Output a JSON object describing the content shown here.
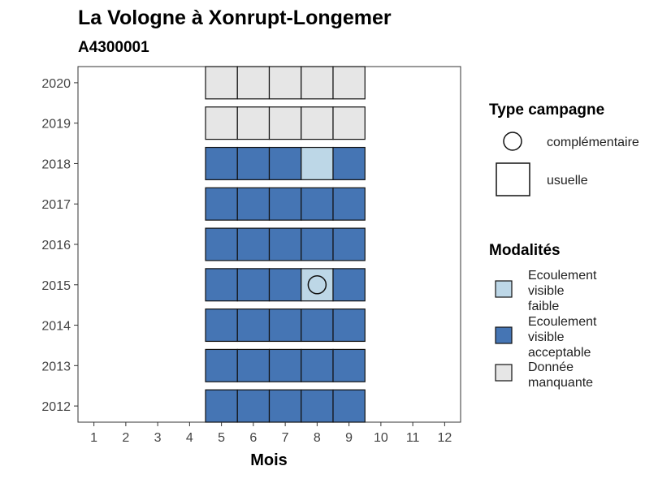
{
  "chart_data": {
    "type": "heatmap",
    "title": "La Vologne à Xonrupt-Longemer",
    "subtitle": "A4300001",
    "xlabel": "Mois",
    "ylabel": "",
    "x_ticks": [
      "1",
      "2",
      "3",
      "4",
      "5",
      "6",
      "7",
      "8",
      "9",
      "10",
      "11",
      "12"
    ],
    "y_ticks": [
      "2012",
      "2013",
      "2014",
      "2015",
      "2016",
      "2017",
      "2018",
      "2019",
      "2020"
    ],
    "xlim": [
      0.5,
      12.5
    ],
    "ylim": [
      2011.6,
      2020.4
    ],
    "colors": {
      "Ecoulement visible faible": "#bdd7e7",
      "Ecoulement visible acceptable": "#4575b4",
      "Donnée manquante": "#e6e6e6"
    },
    "cells": [
      {
        "year": 2020,
        "month": 5,
        "modalite": "Donnée manquante",
        "campagne": "usuelle"
      },
      {
        "year": 2020,
        "month": 6,
        "modalite": "Donnée manquante",
        "campagne": "usuelle"
      },
      {
        "year": 2020,
        "month": 7,
        "modalite": "Donnée manquante",
        "campagne": "usuelle"
      },
      {
        "year": 2020,
        "month": 8,
        "modalite": "Donnée manquante",
        "campagne": "usuelle"
      },
      {
        "year": 2020,
        "month": 9,
        "modalite": "Donnée manquante",
        "campagne": "usuelle"
      },
      {
        "year": 2019,
        "month": 5,
        "modalite": "Donnée manquante",
        "campagne": "usuelle"
      },
      {
        "year": 2019,
        "month": 6,
        "modalite": "Donnée manquante",
        "campagne": "usuelle"
      },
      {
        "year": 2019,
        "month": 7,
        "modalite": "Donnée manquante",
        "campagne": "usuelle"
      },
      {
        "year": 2019,
        "month": 8,
        "modalite": "Donnée manquante",
        "campagne": "usuelle"
      },
      {
        "year": 2019,
        "month": 9,
        "modalite": "Donnée manquante",
        "campagne": "usuelle"
      },
      {
        "year": 2018,
        "month": 5,
        "modalite": "Ecoulement visible acceptable",
        "campagne": "usuelle"
      },
      {
        "year": 2018,
        "month": 6,
        "modalite": "Ecoulement visible acceptable",
        "campagne": "usuelle"
      },
      {
        "year": 2018,
        "month": 7,
        "modalite": "Ecoulement visible acceptable",
        "campagne": "usuelle"
      },
      {
        "year": 2018,
        "month": 8,
        "modalite": "Ecoulement visible faible",
        "campagne": "usuelle"
      },
      {
        "year": 2018,
        "month": 9,
        "modalite": "Ecoulement visible acceptable",
        "campagne": "usuelle"
      },
      {
        "year": 2017,
        "month": 5,
        "modalite": "Ecoulement visible acceptable",
        "campagne": "usuelle"
      },
      {
        "year": 2017,
        "month": 6,
        "modalite": "Ecoulement visible acceptable",
        "campagne": "usuelle"
      },
      {
        "year": 2017,
        "month": 7,
        "modalite": "Ecoulement visible acceptable",
        "campagne": "usuelle"
      },
      {
        "year": 2017,
        "month": 8,
        "modalite": "Ecoulement visible acceptable",
        "campagne": "usuelle"
      },
      {
        "year": 2017,
        "month": 9,
        "modalite": "Ecoulement visible acceptable",
        "campagne": "usuelle"
      },
      {
        "year": 2016,
        "month": 5,
        "modalite": "Ecoulement visible acceptable",
        "campagne": "usuelle"
      },
      {
        "year": 2016,
        "month": 6,
        "modalite": "Ecoulement visible acceptable",
        "campagne": "usuelle"
      },
      {
        "year": 2016,
        "month": 7,
        "modalite": "Ecoulement visible acceptable",
        "campagne": "usuelle"
      },
      {
        "year": 2016,
        "month": 8,
        "modalite": "Ecoulement visible acceptable",
        "campagne": "usuelle"
      },
      {
        "year": 2016,
        "month": 9,
        "modalite": "Ecoulement visible acceptable",
        "campagne": "usuelle"
      },
      {
        "year": 2015,
        "month": 5,
        "modalite": "Ecoulement visible acceptable",
        "campagne": "usuelle"
      },
      {
        "year": 2015,
        "month": 6,
        "modalite": "Ecoulement visible acceptable",
        "campagne": "usuelle"
      },
      {
        "year": 2015,
        "month": 7,
        "modalite": "Ecoulement visible acceptable",
        "campagne": "usuelle"
      },
      {
        "year": 2015,
        "month": 8,
        "modalite": "Ecoulement visible faible",
        "campagne": "complémentaire"
      },
      {
        "year": 2015,
        "month": 9,
        "modalite": "Ecoulement visible acceptable",
        "campagne": "usuelle"
      },
      {
        "year": 2014,
        "month": 5,
        "modalite": "Ecoulement visible acceptable",
        "campagne": "usuelle"
      },
      {
        "year": 2014,
        "month": 6,
        "modalite": "Ecoulement visible acceptable",
        "campagne": "usuelle"
      },
      {
        "year": 2014,
        "month": 7,
        "modalite": "Ecoulement visible acceptable",
        "campagne": "usuelle"
      },
      {
        "year": 2014,
        "month": 8,
        "modalite": "Ecoulement visible acceptable",
        "campagne": "usuelle"
      },
      {
        "year": 2014,
        "month": 9,
        "modalite": "Ecoulement visible acceptable",
        "campagne": "usuelle"
      },
      {
        "year": 2013,
        "month": 5,
        "modalite": "Ecoulement visible acceptable",
        "campagne": "usuelle"
      },
      {
        "year": 2013,
        "month": 6,
        "modalite": "Ecoulement visible acceptable",
        "campagne": "usuelle"
      },
      {
        "year": 2013,
        "month": 7,
        "modalite": "Ecoulement visible acceptable",
        "campagne": "usuelle"
      },
      {
        "year": 2013,
        "month": 8,
        "modalite": "Ecoulement visible acceptable",
        "campagne": "usuelle"
      },
      {
        "year": 2013,
        "month": 9,
        "modalite": "Ecoulement visible acceptable",
        "campagne": "usuelle"
      },
      {
        "year": 2012,
        "month": 5,
        "modalite": "Ecoulement visible acceptable",
        "campagne": "usuelle"
      },
      {
        "year": 2012,
        "month": 6,
        "modalite": "Ecoulement visible acceptable",
        "campagne": "usuelle"
      },
      {
        "year": 2012,
        "month": 7,
        "modalite": "Ecoulement visible acceptable",
        "campagne": "usuelle"
      },
      {
        "year": 2012,
        "month": 8,
        "modalite": "Ecoulement visible acceptable",
        "campagne": "usuelle"
      },
      {
        "year": 2012,
        "month": 9,
        "modalite": "Ecoulement visible acceptable",
        "campagne": "usuelle"
      }
    ],
    "legends": [
      {
        "title": "Type campagne",
        "items": [
          {
            "label": "complémentaire",
            "shape": "circle"
          },
          {
            "label": "usuelle",
            "shape": "square"
          }
        ]
      },
      {
        "title": "Modalités",
        "items": [
          {
            "label_lines": [
              "Ecoulement",
              "visible",
              "faible"
            ],
            "color": "#bdd7e7"
          },
          {
            "label_lines": [
              "Ecoulement",
              "visible",
              "acceptable"
            ],
            "color": "#4575b4"
          },
          {
            "label_lines": [
              "Donnée",
              "manquante"
            ],
            "color": "#e6e6e6"
          }
        ]
      }
    ],
    "legend_position": "right",
    "grid": false
  }
}
